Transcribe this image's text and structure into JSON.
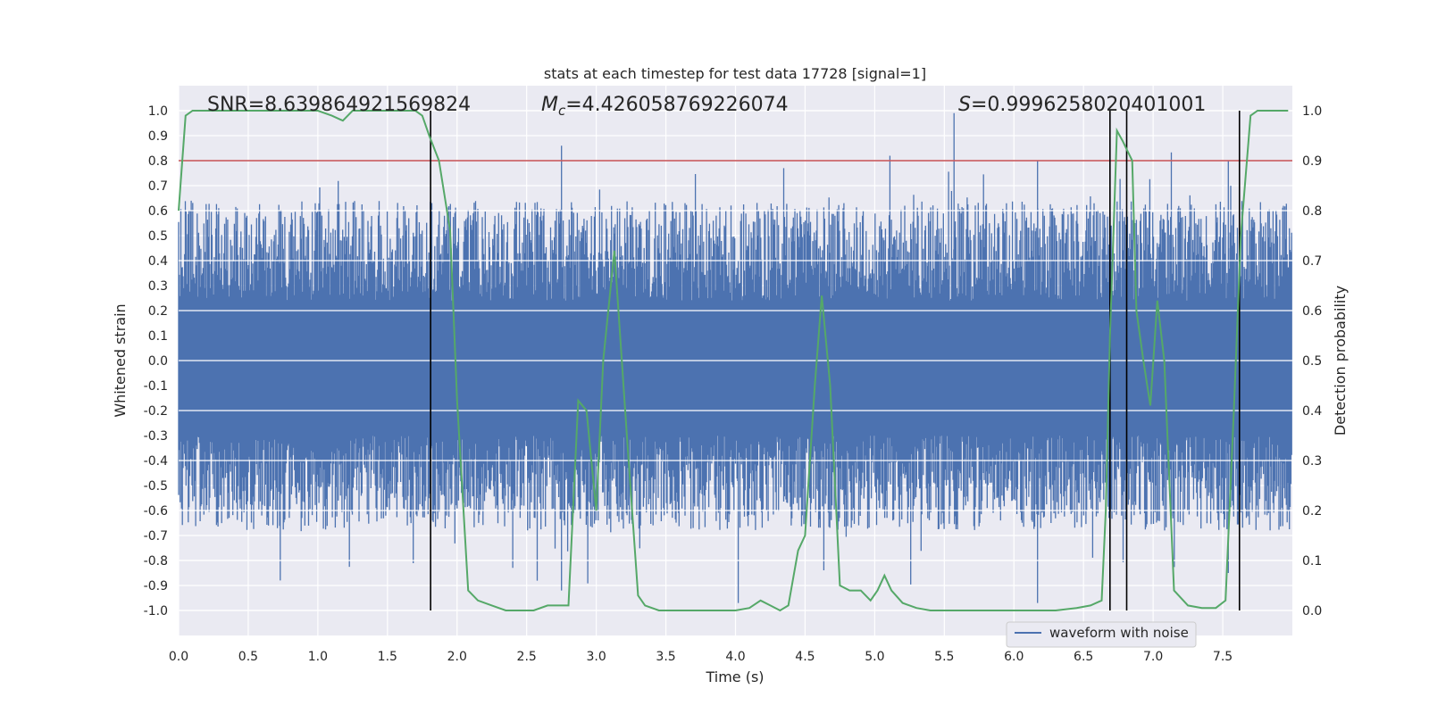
{
  "chart_data": {
    "type": "line",
    "title": "stats at each timestep for test data 17728 [signal=1]",
    "xlabel": "Time (s)",
    "ylabel": "Whitened strain",
    "y2label": "Detection probability",
    "xlim": [
      0,
      8
    ],
    "ylim": [
      -1.1,
      1.1
    ],
    "y2lim": [
      -0.05,
      1.05
    ],
    "xticks": [
      "0.0",
      "0.5",
      "1.0",
      "1.5",
      "2.0",
      "2.5",
      "3.0",
      "3.5",
      "4.0",
      "4.5",
      "5.0",
      "5.5",
      "6.0",
      "6.5",
      "7.0",
      "7.5"
    ],
    "yticks": [
      "1.0",
      "0.9",
      "0.8",
      "0.7",
      "0.6",
      "0.5",
      "0.4",
      "0.3",
      "0.2",
      "0.1",
      "0.0",
      "-0.1",
      "-0.2",
      "-0.3",
      "-0.4",
      "-0.5",
      "-0.6",
      "-0.7",
      "-0.8",
      "-0.9",
      "-1.0"
    ],
    "y2ticks": [
      "1.0",
      "0.9",
      "0.8",
      "0.7",
      "0.6",
      "0.5",
      "0.4",
      "0.3",
      "0.2",
      "0.1",
      "0.0"
    ],
    "annotations": {
      "snr": "SNR=8.639864921569824",
      "mc_symbol": "M",
      "mc_sub": "c",
      "mc_value": "=4.426058769226074",
      "s_symbol": "S",
      "s_value": "=0.9996258020401001"
    },
    "threshold": 0.8,
    "vertical_lines_s": [
      1.81,
      6.69,
      6.81,
      7.62
    ],
    "legend": {
      "label": "waveform with noise",
      "placement": "lower-right"
    },
    "series": [
      {
        "name": "waveform with noise",
        "color": "#4c72b0",
        "description": "dense noise, envelope approx ±0.6 with spikes to ±0.97"
      },
      {
        "name": "Detection probability",
        "color": "#55a868",
        "x": [
          0.0,
          0.05,
          0.1,
          0.2,
          0.3,
          0.5,
          0.7,
          0.9,
          1.0,
          1.1,
          1.18,
          1.25,
          1.35,
          1.5,
          1.6,
          1.7,
          1.75,
          1.8,
          1.87,
          1.95,
          2.0,
          2.08,
          2.15,
          2.25,
          2.35,
          2.45,
          2.55,
          2.65,
          2.75,
          2.8,
          2.87,
          2.93,
          3.0,
          3.05,
          3.13,
          3.22,
          3.3,
          3.35,
          3.45,
          3.6,
          3.75,
          3.9,
          4.0,
          4.1,
          4.18,
          4.25,
          4.32,
          4.38,
          4.45,
          4.5,
          4.57,
          4.62,
          4.68,
          4.75,
          4.82,
          4.9,
          4.97,
          5.02,
          5.07,
          5.12,
          5.2,
          5.3,
          5.4,
          5.5,
          5.7,
          5.9,
          6.1,
          6.3,
          6.45,
          6.55,
          6.63,
          6.66,
          6.69,
          6.74,
          6.78,
          6.85,
          6.88,
          6.93,
          6.98,
          7.03,
          7.08,
          7.15,
          7.25,
          7.35,
          7.45,
          7.52,
          7.58,
          7.63,
          7.7,
          7.75,
          7.8,
          7.9,
          7.97
        ],
        "y": [
          0.8,
          0.99,
          1.0,
          1.0,
          1.0,
          1.0,
          1.0,
          1.0,
          1.0,
          0.99,
          0.98,
          1.0,
          1.0,
          1.0,
          1.0,
          1.0,
          0.99,
          0.95,
          0.9,
          0.76,
          0.42,
          0.04,
          0.02,
          0.01,
          0.0,
          0.0,
          0.0,
          0.01,
          0.01,
          0.01,
          0.42,
          0.4,
          0.2,
          0.5,
          0.72,
          0.35,
          0.03,
          0.01,
          0.0,
          0.0,
          0.0,
          0.0,
          0.0,
          0.005,
          0.02,
          0.01,
          0.0,
          0.01,
          0.12,
          0.15,
          0.45,
          0.63,
          0.45,
          0.05,
          0.04,
          0.04,
          0.02,
          0.04,
          0.07,
          0.04,
          0.015,
          0.005,
          0.0,
          0.0,
          0.0,
          0.0,
          0.0,
          0.0,
          0.005,
          0.01,
          0.02,
          0.2,
          0.55,
          0.96,
          0.94,
          0.9,
          0.6,
          0.5,
          0.41,
          0.62,
          0.5,
          0.04,
          0.01,
          0.005,
          0.005,
          0.02,
          0.4,
          0.75,
          0.99,
          1.0,
          1.0,
          1.0,
          1.0
        ]
      },
      {
        "name": "threshold",
        "color": "#c44e52"
      }
    ],
    "grid": true
  }
}
